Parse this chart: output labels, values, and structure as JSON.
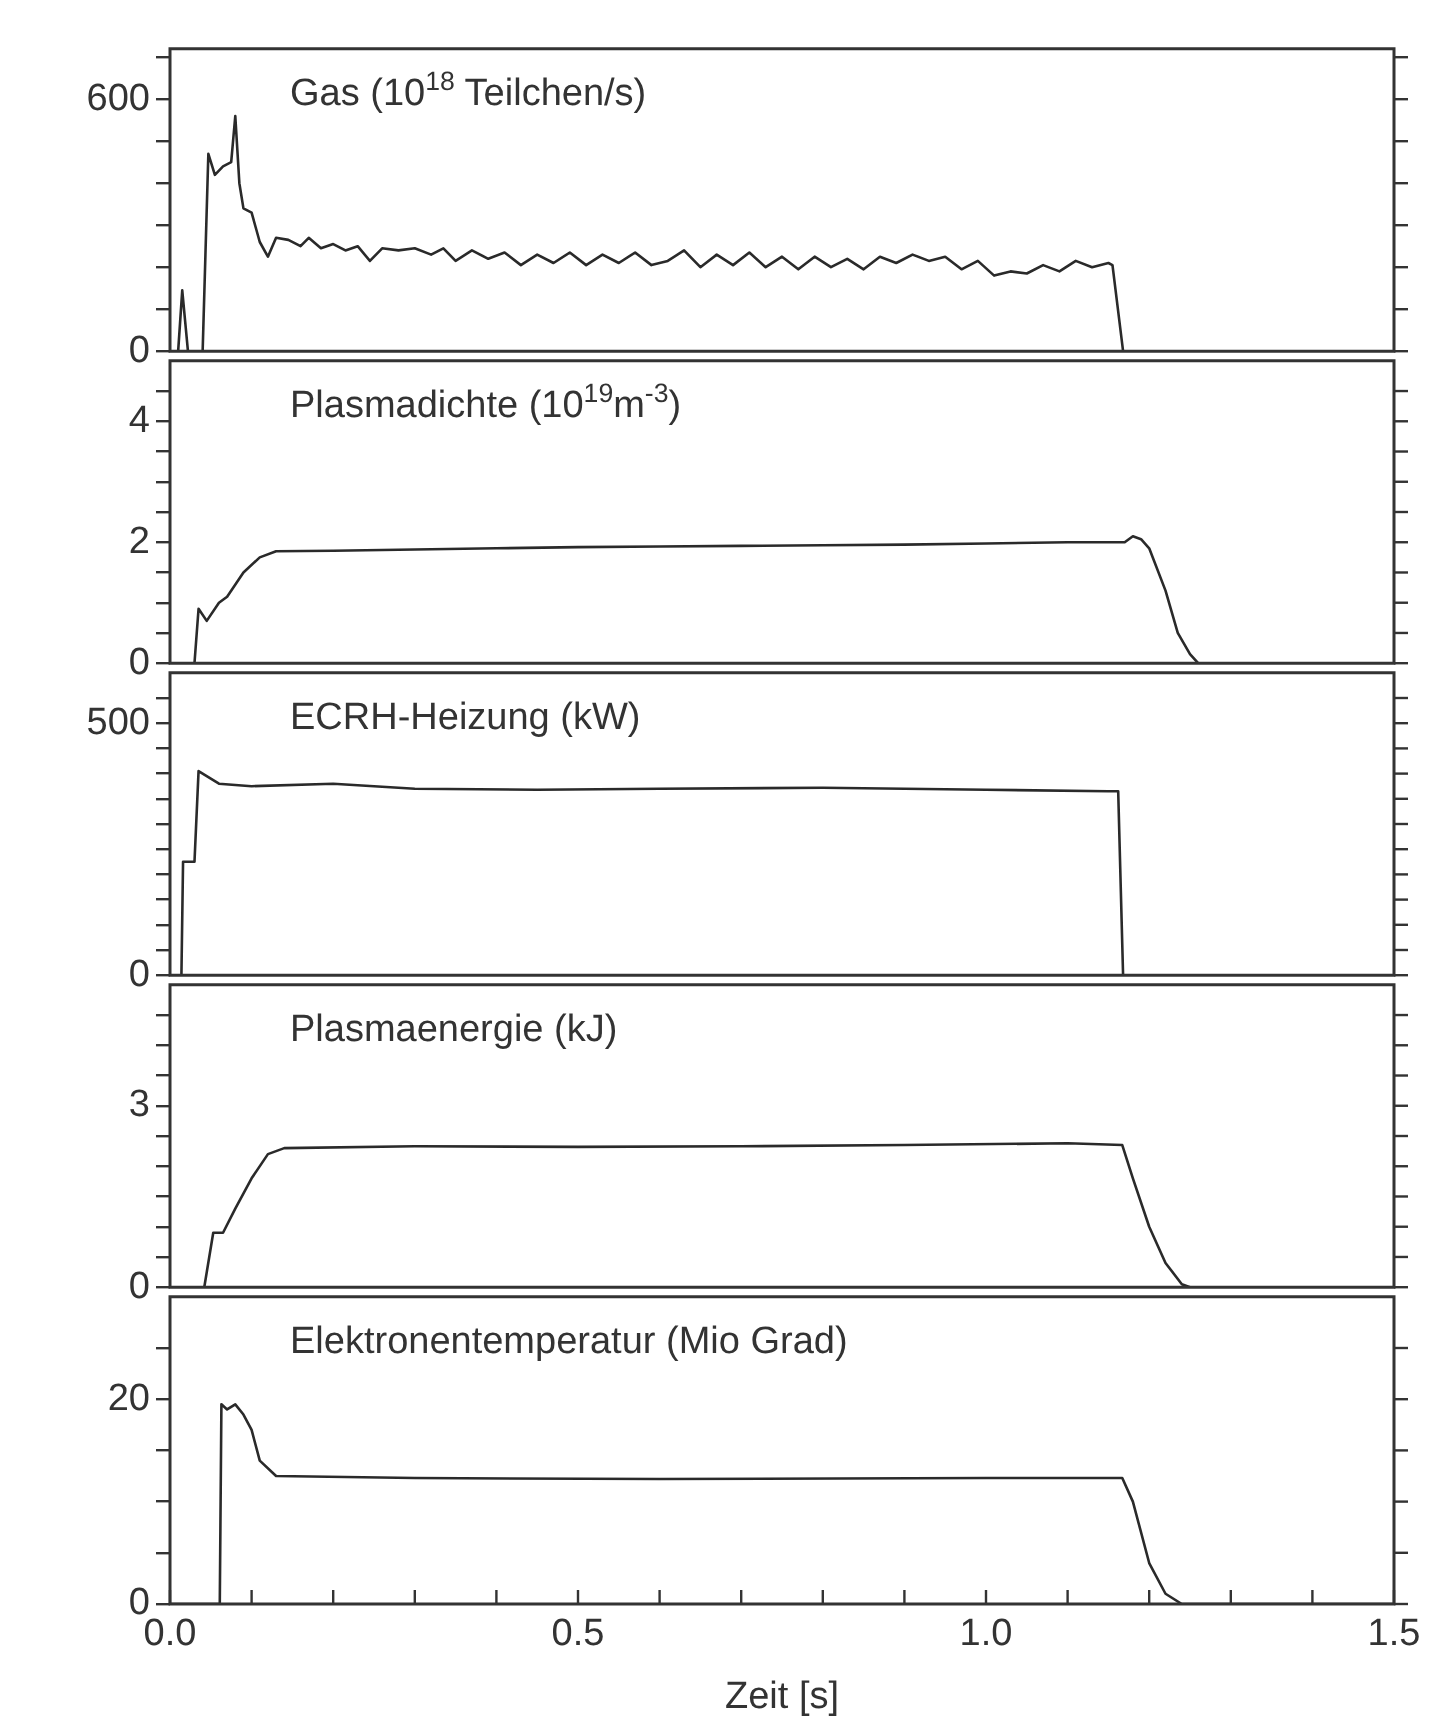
{
  "chart_data": [
    {
      "type": "line",
      "title": "Gas (10$^{18}$ Teilchen/s)",
      "xlim": [
        0,
        1.5
      ],
      "ylim": [
        0,
        720
      ],
      "yticks": [
        0,
        {
          "value": 100,
          "label": null
        },
        {
          "value": 200,
          "label": null
        },
        {
          "value": 300,
          "label": null
        },
        {
          "value": 400,
          "label": null
        },
        {
          "value": 500,
          "label": null
        },
        600,
        {
          "value": 700,
          "label": null
        }
      ],
      "tick_labels": "y",
      "marker": "none",
      "line_style": "solid",
      "series": [
        {
          "color": "#2a2a2a",
          "x": [
            0,
            0.01,
            0.015,
            0.022,
            0.04,
            0.047,
            0.055,
            0.065,
            0.075,
            0.08,
            0.085,
            0.09,
            0.1,
            0.11,
            0.12,
            0.13,
            0.145,
            0.16,
            0.17,
            0.185,
            0.2,
            0.215,
            0.23,
            0.245,
            0.26,
            0.28,
            0.3,
            0.32,
            0.335,
            0.35,
            0.37,
            0.39,
            0.41,
            0.43,
            0.45,
            0.47,
            0.49,
            0.51,
            0.53,
            0.55,
            0.57,
            0.59,
            0.61,
            0.63,
            0.65,
            0.67,
            0.69,
            0.71,
            0.73,
            0.75,
            0.77,
            0.79,
            0.81,
            0.83,
            0.85,
            0.87,
            0.89,
            0.91,
            0.93,
            0.95,
            0.97,
            0.99,
            1.01,
            1.03,
            1.05,
            1.07,
            1.09,
            1.11,
            1.13,
            1.15,
            1.155,
            1.168,
            1.5
          ],
          "values": [
            0,
            0,
            145,
            0,
            0,
            470,
            420,
            440,
            450,
            560,
            400,
            340,
            330,
            260,
            225,
            270,
            265,
            250,
            270,
            245,
            255,
            240,
            250,
            215,
            245,
            240,
            245,
            230,
            245,
            215,
            240,
            220,
            235,
            205,
            230,
            210,
            235,
            205,
            230,
            210,
            235,
            205,
            215,
            240,
            200,
            230,
            205,
            235,
            200,
            225,
            195,
            225,
            200,
            220,
            195,
            225,
            210,
            230,
            215,
            225,
            195,
            215,
            180,
            190,
            185,
            205,
            190,
            215,
            200,
            210,
            205,
            0,
            0
          ]
        }
      ]
    },
    {
      "type": "line",
      "title": "Plasmadichte (10$^{19}$m$^{-3}$)",
      "xlim": [
        0,
        1.5
      ],
      "ylim": [
        0,
        5
      ],
      "yticks": [
        0,
        {
          "value": 0.5,
          "label": null
        },
        {
          "value": 1,
          "label": null
        },
        {
          "value": 1.5,
          "label": null
        },
        2,
        {
          "value": 2.5,
          "label": null
        },
        {
          "value": 3,
          "label": null
        },
        {
          "value": 3.5,
          "label": null
        },
        4,
        {
          "value": 4.5,
          "label": null
        }
      ],
      "tick_labels": "y",
      "marker": "none",
      "line_style": "solid",
      "series": [
        {
          "color": "#2a2a2a",
          "x": [
            0,
            0.03,
            0.035,
            0.045,
            0.06,
            0.07,
            0.09,
            0.11,
            0.13,
            0.2,
            0.3,
            0.4,
            0.5,
            0.6,
            0.7,
            0.8,
            0.9,
            1.0,
            1.1,
            1.17,
            1.18,
            1.19,
            1.2,
            1.22,
            1.235,
            1.25,
            1.26
          ],
          "values": [
            0,
            0,
            0.9,
            0.7,
            1.0,
            1.1,
            1.5,
            1.75,
            1.85,
            1.86,
            1.88,
            1.9,
            1.92,
            1.93,
            1.94,
            1.95,
            1.96,
            1.98,
            2.0,
            2.0,
            2.1,
            2.05,
            1.9,
            1.2,
            0.5,
            0.15,
            0
          ]
        }
      ]
    },
    {
      "type": "line",
      "title": "ECRH-Heizung (kW)",
      "xlim": [
        0,
        1.5
      ],
      "ylim": [
        0,
        600
      ],
      "yticks": [
        0,
        {
          "value": 50,
          "label": null
        },
        {
          "value": 100,
          "label": null
        },
        {
          "value": 150,
          "label": null
        },
        {
          "value": 200,
          "label": null
        },
        {
          "value": 250,
          "label": null
        },
        {
          "value": 300,
          "label": null
        },
        {
          "value": 350,
          "label": null
        },
        {
          "value": 400,
          "label": null
        },
        {
          "value": 450,
          "label": null
        },
        500,
        {
          "value": 550,
          "label": null
        }
      ],
      "tick_labels": "y",
      "marker": "none",
      "line_style": "solid",
      "series": [
        {
          "color": "#2a2a2a",
          "x": [
            0,
            0.014,
            0.016,
            0.03,
            0.035,
            0.06,
            0.1,
            0.2,
            0.3,
            0.45,
            0.6,
            0.8,
            1.0,
            1.15,
            1.162,
            1.168,
            1.5
          ],
          "values": [
            0,
            0,
            225,
            225,
            405,
            380,
            375,
            380,
            370,
            368,
            370,
            372,
            368,
            365,
            365,
            0,
            0
          ]
        }
      ]
    },
    {
      "type": "line",
      "title": "Plasmaenergie (kJ)",
      "xlim": [
        0,
        1.5
      ],
      "ylim": [
        0,
        5
      ],
      "yticks": [
        0,
        {
          "value": 0.5,
          "label": null
        },
        {
          "value": 1,
          "label": null
        },
        {
          "value": 1.5,
          "label": null
        },
        {
          "value": 2,
          "label": null
        },
        {
          "value": 2.5,
          "label": null
        },
        3,
        {
          "value": 3.5,
          "label": null
        },
        {
          "value": 4,
          "label": null
        },
        {
          "value": 4.5,
          "label": null
        }
      ],
      "tick_labels": "y",
      "marker": "none",
      "line_style": "solid",
      "series": [
        {
          "color": "#2a2a2a",
          "x": [
            0,
            0.042,
            0.053,
            0.065,
            0.08,
            0.1,
            0.12,
            0.14,
            0.3,
            0.5,
            0.7,
            0.9,
            1.1,
            1.167,
            1.18,
            1.2,
            1.22,
            1.24,
            1.25,
            1.5
          ],
          "values": [
            0,
            0,
            0.9,
            0.9,
            1.3,
            1.8,
            2.2,
            2.3,
            2.33,
            2.32,
            2.33,
            2.35,
            2.38,
            2.35,
            1.8,
            1.0,
            0.4,
            0.05,
            0,
            0
          ]
        }
      ]
    },
    {
      "type": "line",
      "title": "Elektronentemperatur (Mio Grad)",
      "xlabel": "Zeit [s]",
      "xlim": [
        0,
        1.5
      ],
      "xticks": [
        {
          "value": 0,
          "label": "0.0"
        },
        {
          "value": 0.1,
          "label": null
        },
        {
          "value": 0.2,
          "label": null
        },
        {
          "value": 0.3,
          "label": null
        },
        {
          "value": 0.4,
          "label": null
        },
        0.5,
        {
          "value": 0.6,
          "label": null
        },
        {
          "value": 0.7,
          "label": null
        },
        {
          "value": 0.8,
          "label": null
        },
        {
          "value": 0.9,
          "label": null
        },
        {
          "value": 1,
          "label": "1.0"
        },
        {
          "value": 1.1,
          "label": null
        },
        {
          "value": 1.2,
          "label": null
        },
        {
          "value": 1.3,
          "label": null
        },
        {
          "value": 1.4,
          "label": null
        },
        1.5
      ],
      "ylim": [
        0,
        30
      ],
      "yticks": [
        0,
        {
          "value": 5,
          "label": null
        },
        {
          "value": 10,
          "label": null
        },
        {
          "value": 15,
          "label": null
        },
        20,
        {
          "value": 25,
          "label": null
        }
      ],
      "marker": "none",
      "line_style": "solid",
      "series": [
        {
          "color": "#2a2a2a",
          "x": [
            0,
            0.061,
            0.063,
            0.07,
            0.08,
            0.09,
            0.1,
            0.11,
            0.13,
            0.3,
            0.6,
            1.0,
            1.167,
            1.18,
            1.2,
            1.22,
            1.24,
            1.5
          ],
          "values": [
            0,
            0,
            19.5,
            19,
            19.5,
            18.5,
            17,
            14,
            12.5,
            12.3,
            12.2,
            12.3,
            12.3,
            10,
            4,
            1,
            0,
            0
          ]
        }
      ]
    }
  ]
}
